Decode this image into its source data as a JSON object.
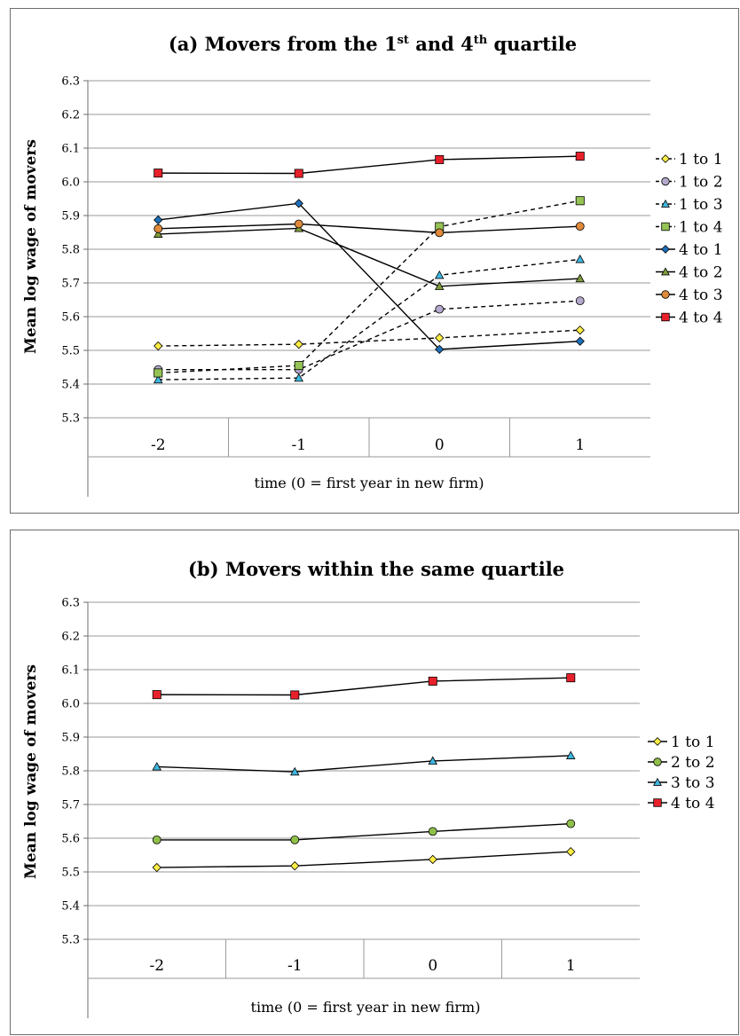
{
  "chart_data": [
    {
      "type": "line",
      "title_prefix": "(a) Movers from the 1",
      "title_sup1": "st",
      "title_mid": " and 4",
      "title_sup2": "th",
      "title_suffix": " quartile",
      "xlabel": "time (0 = first year in new firm)",
      "ylabel": "Mean log wage of movers",
      "categories": [
        "-2",
        "-1",
        "0",
        "1"
      ],
      "ylim": [
        5.3,
        6.3
      ],
      "yticks": [
        "5.3",
        "5.4",
        "5.5",
        "5.6",
        "5.7",
        "5.8",
        "5.9",
        "6.0",
        "6.1",
        "6.2",
        "6.3"
      ],
      "grid": true,
      "legend_position": "right",
      "series": [
        {
          "name": "1 to 1",
          "values": [
            5.513,
            5.518,
            5.537,
            5.56
          ],
          "marker": "diamond",
          "color": "#ffee44",
          "dashed": true
        },
        {
          "name": "1 to 2",
          "values": [
            5.443,
            5.443,
            5.622,
            5.647
          ],
          "marker": "circle",
          "color": "#b4a8cc",
          "dashed": true
        },
        {
          "name": "1 to 3",
          "values": [
            5.413,
            5.418,
            5.723,
            5.77
          ],
          "marker": "triangle",
          "color": "#3fb7e0",
          "dashed": true
        },
        {
          "name": "1 to 4",
          "values": [
            5.433,
            5.455,
            5.867,
            5.944
          ],
          "marker": "square",
          "color": "#95c354",
          "dashed": true
        },
        {
          "name": "4 to 1",
          "values": [
            5.887,
            5.936,
            5.503,
            5.527
          ],
          "marker": "diamond",
          "color": "#1e6fb8",
          "dashed": false
        },
        {
          "name": "4 to 2",
          "values": [
            5.845,
            5.862,
            5.69,
            5.713
          ],
          "marker": "triangle",
          "color": "#7f9c3c",
          "dashed": false
        },
        {
          "name": "4 to 3",
          "values": [
            5.861,
            5.875,
            5.849,
            5.868
          ],
          "marker": "circle",
          "color": "#e08a3b",
          "dashed": false
        },
        {
          "name": "4 to 4",
          "values": [
            6.026,
            6.025,
            6.066,
            6.076
          ],
          "marker": "square",
          "color": "#e8202a",
          "dashed": false
        }
      ]
    },
    {
      "type": "line",
      "title": "(b) Movers within the same quartile",
      "xlabel": "time (0 = first year in new firm)",
      "ylabel": "Mean log wage of movers",
      "categories": [
        "-2",
        "-1",
        "0",
        "1"
      ],
      "ylim": [
        5.3,
        6.3
      ],
      "yticks": [
        "5.3",
        "5.4",
        "5.5",
        "5.6",
        "5.7",
        "5.8",
        "5.9",
        "6.0",
        "6.1",
        "6.2",
        "6.3"
      ],
      "grid": true,
      "legend_position": "right",
      "series": [
        {
          "name": "1 to 1",
          "values": [
            5.513,
            5.518,
            5.537,
            5.56
          ],
          "marker": "diamond",
          "color": "#ffee44",
          "dashed": false
        },
        {
          "name": "2 to 2",
          "values": [
            5.595,
            5.595,
            5.62,
            5.643
          ],
          "marker": "circle",
          "color": "#8fc04a",
          "dashed": false
        },
        {
          "name": "3 to 3",
          "values": [
            5.812,
            5.797,
            5.829,
            5.845
          ],
          "marker": "triangle",
          "color": "#3fb7e0",
          "dashed": false
        },
        {
          "name": "4 to 4",
          "values": [
            6.026,
            6.025,
            6.066,
            6.076
          ],
          "marker": "square",
          "color": "#e8202a",
          "dashed": false
        }
      ]
    }
  ]
}
